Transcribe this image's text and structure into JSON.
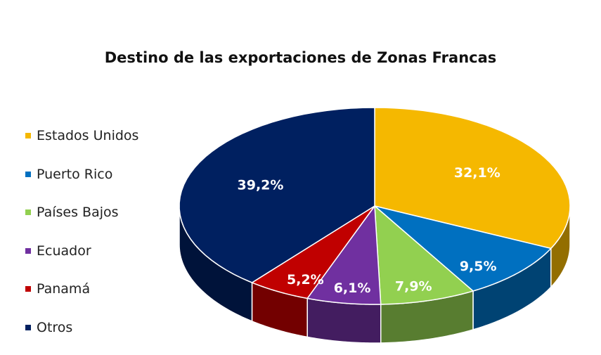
{
  "chart_data": {
    "type": "pie",
    "title": "Destino de las exportaciones de Zonas Francas",
    "three_d": true,
    "legend_position": "left",
    "slices": [
      {
        "name": "Estados Unidos",
        "value": 32.1,
        "label": "32,1%",
        "color": "#F5B800"
      },
      {
        "name": "Puerto Rico",
        "value": 9.5,
        "label": "9,5%",
        "color": "#0070C0"
      },
      {
        "name": "Países Bajos",
        "value": 7.9,
        "label": "7,9%",
        "color": "#92D050"
      },
      {
        "name": "Ecuador",
        "value": 6.1,
        "label": "6,1%",
        "color": "#7030A0"
      },
      {
        "name": "Panamá",
        "value": 5.2,
        "label": "5,2%",
        "color": "#C00000"
      },
      {
        "name": "Otros",
        "value": 39.2,
        "label": "39,2%",
        "color": "#002060"
      }
    ]
  }
}
